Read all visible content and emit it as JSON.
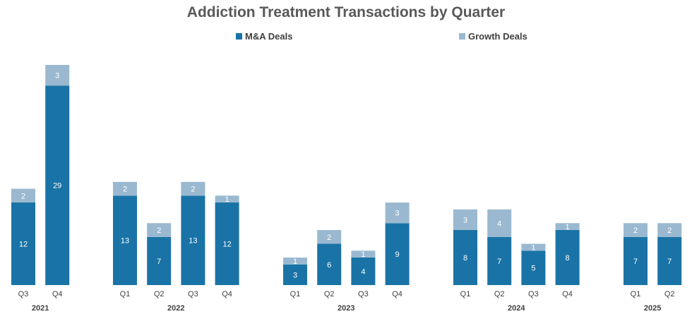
{
  "chart_data": {
    "type": "bar",
    "stacked": true,
    "title": "Addiction Treatment Transactions by Quarter",
    "legend_position": "top",
    "series": [
      {
        "name": "M&A Deals",
        "color": "#1a73a6"
      },
      {
        "name": "Growth Deals",
        "color": "#9ab9d0"
      }
    ],
    "groups": [
      {
        "year": "2021",
        "quarters": [
          {
            "label": "Q3",
            "ma": 12,
            "growth": 2
          },
          {
            "label": "Q4",
            "ma": 29,
            "growth": 3
          }
        ]
      },
      {
        "year": "2022",
        "quarters": [
          {
            "label": "Q1",
            "ma": 13,
            "growth": 2
          },
          {
            "label": "Q2",
            "ma": 7,
            "growth": 2
          },
          {
            "label": "Q3",
            "ma": 13,
            "growth": 2
          },
          {
            "label": "Q4",
            "ma": 12,
            "growth": 1
          }
        ]
      },
      {
        "year": "2023",
        "quarters": [
          {
            "label": "Q1",
            "ma": 3,
            "growth": 1
          },
          {
            "label": "Q2",
            "ma": 6,
            "growth": 2
          },
          {
            "label": "Q3",
            "ma": 4,
            "growth": 1
          },
          {
            "label": "Q4",
            "ma": 9,
            "growth": 3
          }
        ]
      },
      {
        "year": "2024",
        "quarters": [
          {
            "label": "Q1",
            "ma": 8,
            "growth": 3
          },
          {
            "label": "Q2",
            "ma": 7,
            "growth": 4
          },
          {
            "label": "Q3",
            "ma": 5,
            "growth": 1
          },
          {
            "label": "Q4",
            "ma": 8,
            "growth": 1
          }
        ]
      },
      {
        "year": "2025",
        "quarters": [
          {
            "label": "Q1",
            "ma": 7,
            "growth": 2
          },
          {
            "label": "Q2",
            "ma": 7,
            "growth": 2
          }
        ]
      }
    ],
    "ylim": [
      0,
      32
    ]
  }
}
